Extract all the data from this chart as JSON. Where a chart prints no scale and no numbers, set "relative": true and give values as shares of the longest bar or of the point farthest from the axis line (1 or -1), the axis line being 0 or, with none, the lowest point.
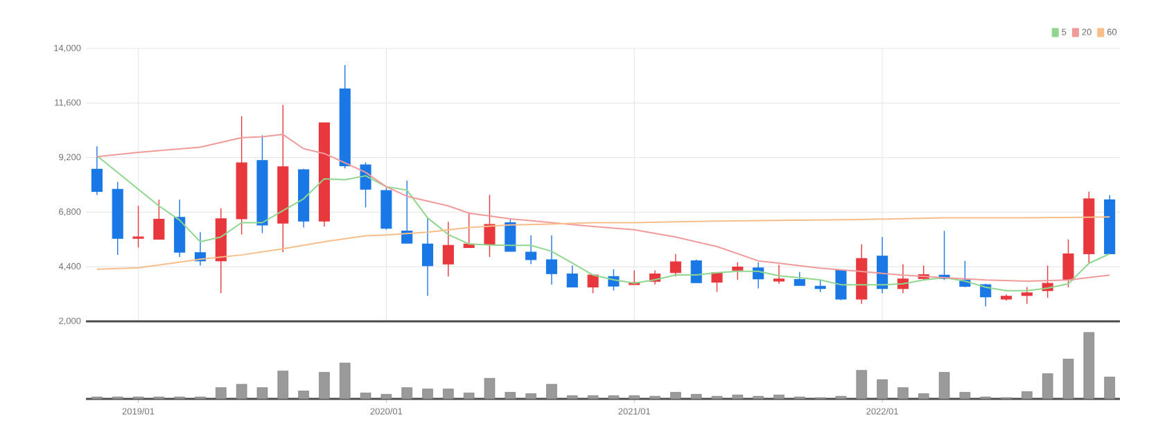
{
  "chart_data": [
    {
      "type": "candlestick",
      "tick_labels": "y",
      "grid": true,
      "legend": "top right",
      "xlim": [
        "2018-10-15",
        "2022-12-16"
      ],
      "ylim": [
        2000,
        14000
      ],
      "xticks": [
        {
          "value": "2019-01",
          "label": null
        },
        {
          "value": "2020-01",
          "label": null
        },
        {
          "value": "2021-01",
          "label": null
        },
        {
          "value": "2022-01",
          "label": null
        }
      ],
      "yticks": [
        {
          "value": 2000,
          "label": "2,000"
        },
        {
          "value": 4400,
          "label": "4,400"
        },
        {
          "value": 6800,
          "label": "6,800"
        },
        {
          "value": 9200,
          "label": "9,200"
        },
        {
          "value": 11600,
          "label": "11,600"
        },
        {
          "value": 14000,
          "label": "14,000"
        }
      ],
      "x": [
        "2018-11",
        "2018-12",
        "2019-01",
        "2019-02",
        "2019-03",
        "2019-04",
        "2019-05",
        "2019-06",
        "2019-07",
        "2019-08",
        "2019-09",
        "2019-10",
        "2019-11",
        "2019-12",
        "2020-01",
        "2020-02",
        "2020-03",
        "2020-04",
        "2020-05",
        "2020-06",
        "2020-07",
        "2020-08",
        "2020-09",
        "2020-10",
        "2020-11",
        "2020-12",
        "2021-01",
        "2021-02",
        "2021-03",
        "2021-04",
        "2021-05",
        "2021-06",
        "2021-07",
        "2021-08",
        "2021-09",
        "2021-10",
        "2021-11",
        "2021-12",
        "2022-01",
        "2022-02",
        "2022-03",
        "2022-04",
        "2022-05",
        "2022-06",
        "2022-07",
        "2022-08",
        "2022-09",
        "2022-10",
        "2022-11",
        "2022-12"
      ],
      "ohlc": [
        [
          8690,
          9700,
          7560,
          7710
        ],
        [
          7810,
          8130,
          4920,
          5650
        ],
        [
          5650,
          7080,
          5250,
          5710
        ],
        [
          5610,
          7350,
          5610,
          6490
        ],
        [
          6570,
          7350,
          4830,
          5040
        ],
        [
          5020,
          5920,
          4450,
          4660
        ],
        [
          4660,
          6970,
          3240,
          6510
        ],
        [
          6510,
          11020,
          5820,
          8970
        ],
        [
          9070,
          10180,
          5880,
          6240
        ],
        [
          6320,
          11520,
          5040,
          8800
        ],
        [
          8670,
          8710,
          6130,
          6410
        ],
        [
          6410,
          10730,
          6170,
          10730
        ],
        [
          12220,
          13270,
          8730,
          8840
        ],
        [
          8880,
          8990,
          7010,
          7810
        ],
        [
          7750,
          7870,
          6030,
          6090
        ],
        [
          5970,
          8190,
          5440,
          5440
        ],
        [
          5400,
          6550,
          3130,
          4450
        ],
        [
          4520,
          6380,
          3970,
          5340
        ],
        [
          5250,
          6760,
          5250,
          5400
        ],
        [
          5380,
          7560,
          4830,
          6260
        ],
        [
          6340,
          6490,
          5080,
          5080
        ],
        [
          5040,
          5780,
          4520,
          4710
        ],
        [
          4710,
          5780,
          3620,
          4100
        ],
        [
          4080,
          4450,
          3510,
          3510
        ],
        [
          3510,
          4040,
          3240,
          4040
        ],
        [
          3970,
          4290,
          3360,
          3550
        ],
        [
          3620,
          4240,
          3620,
          3700
        ],
        [
          3760,
          4240,
          3620,
          4080
        ],
        [
          4140,
          4960,
          3970,
          4620
        ],
        [
          4660,
          4710,
          3700,
          3700
        ],
        [
          3720,
          4140,
          3300,
          4140
        ],
        [
          4250,
          4600,
          3830,
          4390
        ],
        [
          4350,
          4600,
          3450,
          3870
        ],
        [
          3770,
          4490,
          3650,
          3860
        ],
        [
          3840,
          4170,
          3580,
          3580
        ],
        [
          3540,
          3820,
          3290,
          3440
        ],
        [
          4240,
          4280,
          2930,
          2980
        ],
        [
          2980,
          5390,
          2770,
          4760
        ],
        [
          4870,
          5710,
          3230,
          3440
        ],
        [
          3440,
          4510,
          3230,
          3860
        ],
        [
          3880,
          4450,
          3820,
          4050
        ],
        [
          4030,
          5980,
          3820,
          3880
        ],
        [
          3820,
          4660,
          3500,
          3540
        ],
        [
          3610,
          3650,
          2660,
          3080
        ],
        [
          2980,
          3190,
          2910,
          3100
        ],
        [
          3140,
          3500,
          2770,
          3250
        ],
        [
          3350,
          4450,
          3040,
          3670
        ],
        [
          3820,
          5600,
          3500,
          4970
        ],
        [
          4970,
          7700,
          4550,
          7390
        ],
        [
          7340,
          7550,
          4970,
          4970
        ]
      ],
      "colors": [
        "#1a78e6",
        "#1a78e6",
        "#e8383d",
        "#e8383d",
        "#1a78e6",
        "#1a78e6",
        "#e8383d",
        "#e8383d",
        "#1a78e6",
        "#e8383d",
        "#1a78e6",
        "#e8383d",
        "#1a78e6",
        "#1a78e6",
        "#1a78e6",
        "#1a78e6",
        "#1a78e6",
        "#e8383d",
        "#e8383d",
        "#e8383d",
        "#1a78e6",
        "#1a78e6",
        "#1a78e6",
        "#1a78e6",
        "#e8383d",
        "#1a78e6",
        "#e8383d",
        "#e8383d",
        "#e8383d",
        "#1a78e6",
        "#e8383d",
        "#e8383d",
        "#1a78e6",
        "#e8383d",
        "#1a78e6",
        "#1a78e6",
        "#1a78e6",
        "#e8383d",
        "#1a78e6",
        "#e8383d",
        "#e8383d",
        "#1a78e6",
        "#1a78e6",
        "#1a78e6",
        "#e8383d",
        "#e8383d",
        "#e8383d",
        "#e8383d",
        "#e8383d",
        "#1a78e6"
      ],
      "series": [
        {
          "name": "5",
          "type": "line",
          "color": "#8fd68f",
          "x": [
            "2018-11",
            "2018-12",
            "2019-01",
            "2019-02",
            "2019-03",
            "2019-04",
            "2019-05",
            "2019-06",
            "2019-07",
            "2019-08",
            "2019-09",
            "2019-10",
            "2019-11",
            "2019-12",
            "2020-01",
            "2020-02",
            "2020-03",
            "2020-04",
            "2020-05",
            "2020-06",
            "2020-07",
            "2020-08",
            "2020-09",
            "2020-10",
            "2020-11",
            "2020-12",
            "2021-01",
            "2021-02",
            "2021-03",
            "2021-04",
            "2021-05",
            "2021-06",
            "2021-07",
            "2021-08",
            "2021-09",
            "2021-10",
            "2021-11",
            "2021-12",
            "2022-01",
            "2022-02",
            "2022-03",
            "2022-04",
            "2022-05",
            "2022-06",
            "2022-07",
            "2022-08",
            "2022-09",
            "2022-10",
            "2022-11",
            "2022-12"
          ],
          "values": [
            9280,
            8550,
            7810,
            7080,
            6450,
            5500,
            5710,
            6340,
            6340,
            6870,
            7390,
            8270,
            8230,
            8400,
            7920,
            7770,
            6550,
            5820,
            5400,
            5360,
            5340,
            5340,
            5080,
            4560,
            4040,
            3830,
            3680,
            3830,
            4040,
            4040,
            4140,
            4200,
            4200,
            4000,
            3920,
            3820,
            3610,
            3610,
            3610,
            3650,
            3820,
            3920,
            3770,
            3500,
            3350,
            3350,
            3460,
            3650,
            4550,
            4970
          ]
        },
        {
          "name": "20",
          "type": "line",
          "color": "#f19a9a",
          "x": [
            "2018-11",
            "2019-01",
            "2019-04",
            "2019-06",
            "2019-07",
            "2019-08",
            "2019-09",
            "2019-10",
            "2019-11",
            "2019-12",
            "2020-01",
            "2020-02",
            "2020-04",
            "2020-05",
            "2020-07",
            "2020-09",
            "2020-11",
            "2021-01",
            "2021-03",
            "2021-05",
            "2021-07",
            "2021-08",
            "2021-10",
            "2021-12",
            "2022-02",
            "2022-04",
            "2022-06",
            "2022-08",
            "2022-10",
            "2022-12"
          ],
          "values": [
            9240,
            9430,
            9660,
            10080,
            10120,
            10220,
            9590,
            9380,
            8970,
            8550,
            7920,
            7500,
            7080,
            6760,
            6510,
            6340,
            6170,
            6030,
            5710,
            5290,
            4660,
            4560,
            4340,
            4190,
            4030,
            3920,
            3820,
            3770,
            3820,
            4030
          ]
        },
        {
          "name": "60",
          "type": "line",
          "color": "#f7be8a",
          "x": [
            "2018-11",
            "2019-01",
            "2019-04",
            "2019-06",
            "2019-08",
            "2019-10",
            "2019-12",
            "2020-01",
            "2020-03",
            "2020-05",
            "2020-07",
            "2020-09",
            "2020-11",
            "2021-01",
            "2021-03",
            "2021-05",
            "2021-08",
            "2021-12",
            "2022-04",
            "2022-08",
            "2022-12"
          ],
          "values": [
            4290,
            4350,
            4730,
            4920,
            5190,
            5500,
            5760,
            5800,
            5920,
            6130,
            6240,
            6280,
            6340,
            6340,
            6380,
            6410,
            6440,
            6480,
            6550,
            6550,
            6590
          ]
        }
      ]
    },
    {
      "type": "bar",
      "relative": true,
      "color": "#9a9a9a",
      "xlim": [
        "2018-10-15",
        "2022-12-16"
      ],
      "xticks": [
        {
          "value": "2019-01",
          "label": "2019/01"
        },
        {
          "value": "2020-01",
          "label": "2020/01"
        },
        {
          "value": "2021-01",
          "label": "2021/01"
        },
        {
          "value": "2022-01",
          "label": "2022/01"
        }
      ],
      "x": [
        "2018-11",
        "2018-12",
        "2019-01",
        "2019-02",
        "2019-03",
        "2019-04",
        "2019-05",
        "2019-06",
        "2019-07",
        "2019-08",
        "2019-09",
        "2019-10",
        "2019-11",
        "2019-12",
        "2020-01",
        "2020-02",
        "2020-03",
        "2020-04",
        "2020-05",
        "2020-06",
        "2020-07",
        "2020-08",
        "2020-09",
        "2020-10",
        "2020-11",
        "2020-12",
        "2021-01",
        "2021-02",
        "2021-03",
        "2021-04",
        "2021-05",
        "2021-06",
        "2021-07",
        "2021-08",
        "2021-09",
        "2021-10",
        "2021-11",
        "2021-12",
        "2022-01",
        "2022-02",
        "2022-03",
        "2022-04",
        "2022-05",
        "2022-06",
        "2022-07",
        "2022-08",
        "2022-09",
        "2022-10",
        "2022-11",
        "2022-12"
      ],
      "values": [
        0.03,
        0.03,
        0.03,
        0.03,
        0.03,
        0.03,
        0.17,
        0.22,
        0.17,
        0.42,
        0.12,
        0.4,
        0.54,
        0.09,
        0.07,
        0.17,
        0.15,
        0.15,
        0.09,
        0.31,
        0.1,
        0.08,
        0.22,
        0.05,
        0.05,
        0.05,
        0.05,
        0.04,
        0.1,
        0.07,
        0.04,
        0.06,
        0.04,
        0.06,
        0.03,
        0.02,
        0.04,
        0.43,
        0.29,
        0.17,
        0.08,
        0.4,
        0.1,
        0.03,
        0.02,
        0.11,
        0.38,
        0.6,
        1,
        0.33
      ]
    }
  ]
}
